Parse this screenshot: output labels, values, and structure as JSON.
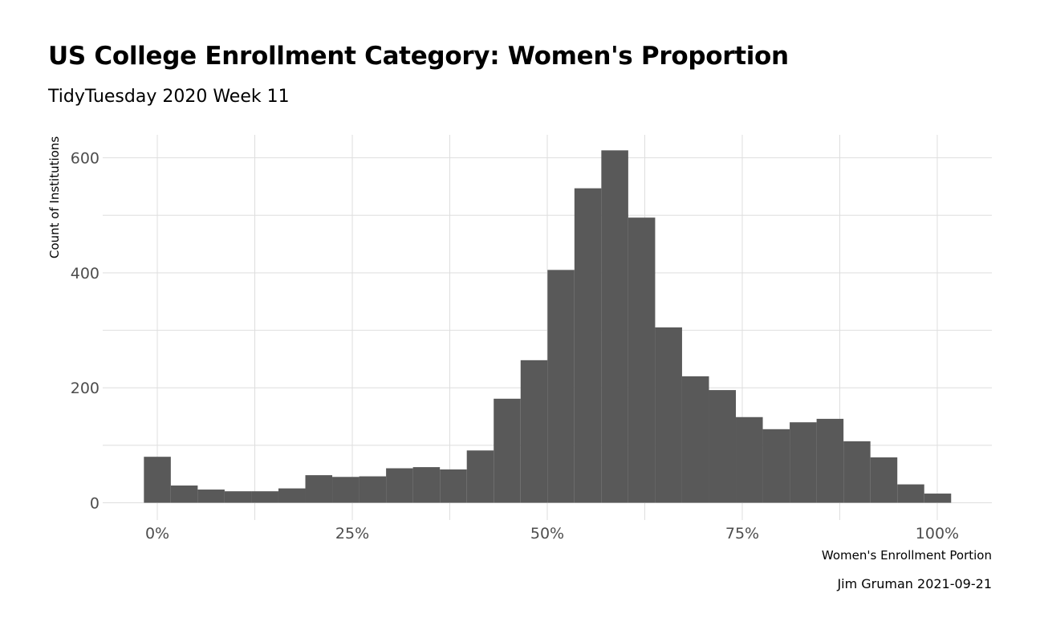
{
  "header": {
    "title": "US College Enrollment Category: Women's Proportion",
    "subtitle": "TidyTuesday 2020 Week 11",
    "caption": "Jim Gruman 2021-09-21"
  },
  "colors": {
    "bar": "#595959",
    "grid": "#dedede",
    "tick_text": "#4d4d4d"
  },
  "chart_data": {
    "type": "bar",
    "title": "US College Enrollment Category: Women's Proportion",
    "subtitle": "TidyTuesday 2020 Week 11",
    "xlabel": "Women's Enrollment Portion",
    "ylabel": "Count of Institutions",
    "grid": true,
    "bin_width": 0.0345,
    "bins_start": -0.0172,
    "xlim": [
      -0.07,
      1.07
    ],
    "ylim": [
      -30,
      640
    ],
    "x_ticks": [
      0,
      0.25,
      0.5,
      0.75,
      1.0
    ],
    "x_tick_labels": [
      "0%",
      "25%",
      "50%",
      "75%",
      "100%"
    ],
    "y_ticks": [
      0,
      200,
      400,
      600
    ],
    "y_tick_labels": [
      "0",
      "200",
      "400",
      "600"
    ],
    "values": [
      80,
      30,
      23,
      20,
      20,
      25,
      48,
      45,
      46,
      60,
      62,
      58,
      91,
      181,
      248,
      405,
      547,
      613,
      496,
      305,
      220,
      196,
      149,
      128,
      140,
      146,
      107,
      79,
      32,
      16
    ]
  }
}
